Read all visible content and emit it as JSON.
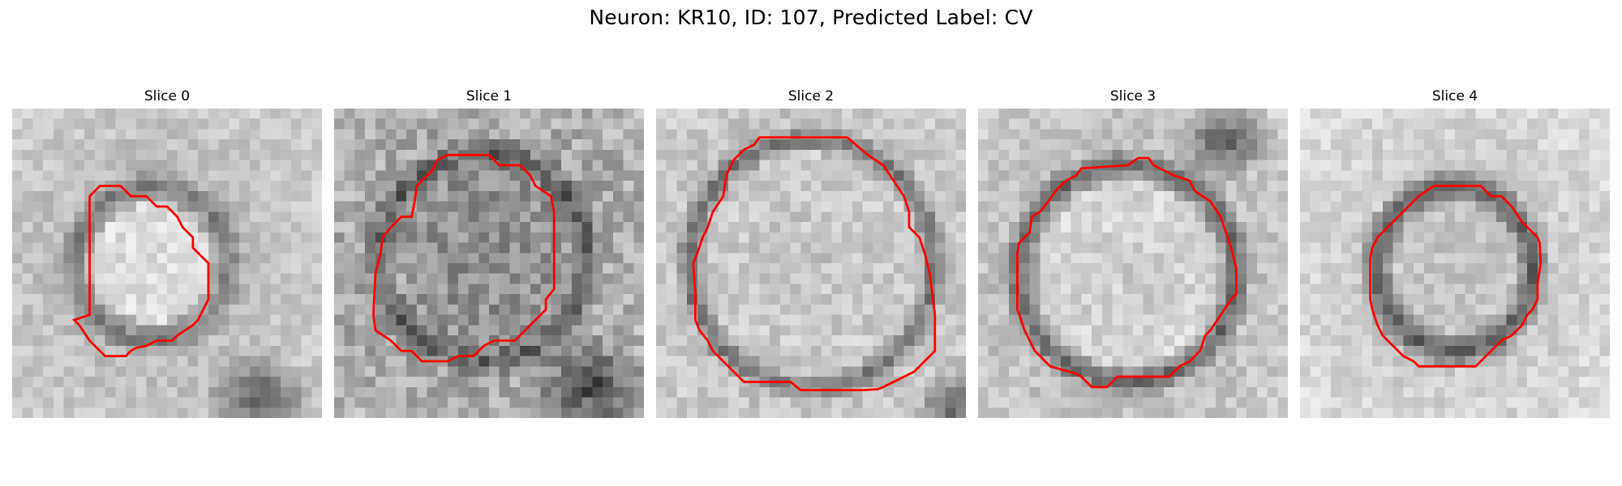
{
  "figure": {
    "title": "Neuron: KR10, ID: 107, Predicted Label: CV"
  },
  "slices": [
    {
      "title": "Slice 0",
      "image_description": "grayscale microscopy crop, bright oval cell body with dark ring"
    },
    {
      "title": "Slice 1",
      "image_description": "grayscale microscopy crop, textured circular cell"
    },
    {
      "title": "Slice 2",
      "image_description": "grayscale microscopy crop, large bright round cell with dark outline"
    },
    {
      "title": "Slice 3",
      "image_description": "grayscale microscopy crop, round cell with dark membrane"
    },
    {
      "title": "Slice 4",
      "image_description": "grayscale microscopy crop, smaller cell with dark ring"
    }
  ],
  "colors": {
    "contour": "#ff0000",
    "background": "#ffffff"
  }
}
